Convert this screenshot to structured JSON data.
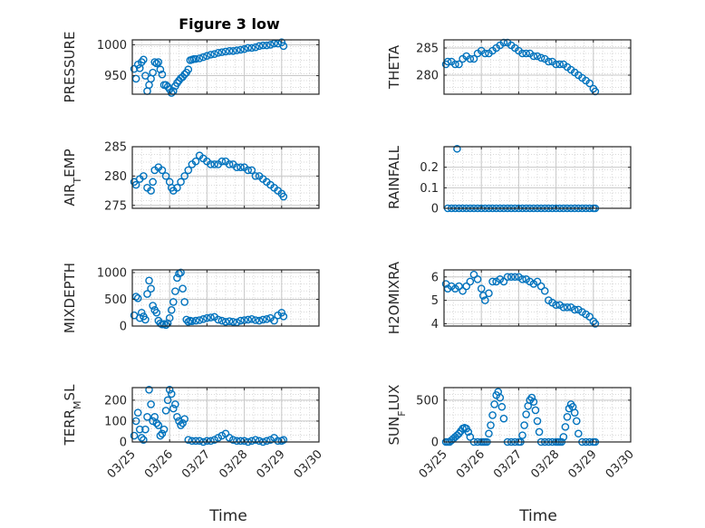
{
  "figure": {
    "title": "Figure 3 low",
    "xlabel": "Time",
    "background": "#ffffff",
    "marker_color": "#0072BD"
  },
  "chart_data": [
    {
      "type": "scatter",
      "title": "Figure 3 low",
      "ylabel": "PRESSURE",
      "ylabel_sub": null,
      "xlim": [
        0,
        5
      ],
      "ylim": [
        920,
        1008
      ],
      "yticks": [
        950,
        1000
      ],
      "xticks": [
        "03/25",
        "03/26",
        "03/27",
        "03/28",
        "03/29",
        "03/30"
      ],
      "xtick_labels_shown": false,
      "grid": true,
      "series": [
        {
          "x": [
            0.05,
            0.1,
            0.15,
            0.2,
            0.25,
            0.3,
            0.35,
            0.4,
            0.45,
            0.5,
            0.55,
            0.6,
            0.65,
            0.7,
            0.75,
            0.8,
            0.85,
            0.9,
            0.95,
            1.0,
            1.05,
            1.1,
            1.15,
            1.2,
            1.25,
            1.3,
            1.35,
            1.4,
            1.45,
            1.5,
            1.55,
            1.6,
            1.65,
            1.7,
            1.8,
            1.9,
            2.0,
            2.1,
            2.2,
            2.3,
            2.4,
            2.5,
            2.6,
            2.7,
            2.8,
            2.9,
            3.0,
            3.1,
            3.2,
            3.3,
            3.4,
            3.5,
            3.6,
            3.7,
            3.8,
            3.9,
            4.0,
            4.05
          ],
          "y": [
            961,
            945,
            968,
            962,
            972,
            976,
            950,
            925,
            935,
            945,
            955,
            972,
            970,
            972,
            960,
            952,
            935,
            935,
            932,
            928,
            922,
            925,
            933,
            938,
            942,
            946,
            948,
            952,
            955,
            960,
            975,
            976,
            977,
            977,
            978,
            980,
            982,
            984,
            985,
            987,
            988,
            989,
            990,
            990,
            991,
            992,
            993,
            995,
            995,
            996,
            998,
            999,
            999,
            1000,
            1002,
            1002,
            1004,
            998
          ]
        }
      ]
    },
    {
      "type": "scatter",
      "ylabel": "THETA",
      "ylabel_sub": null,
      "xlim": [
        0,
        5
      ],
      "ylim": [
        276.5,
        286.5
      ],
      "yticks": [
        280,
        285
      ],
      "xtick_labels_shown": false,
      "grid": true,
      "series": [
        {
          "x": [
            0.05,
            0.1,
            0.2,
            0.3,
            0.4,
            0.5,
            0.6,
            0.7,
            0.8,
            0.9,
            1.0,
            1.1,
            1.2,
            1.3,
            1.4,
            1.5,
            1.6,
            1.7,
            1.8,
            1.9,
            2.0,
            2.1,
            2.2,
            2.3,
            2.4,
            2.5,
            2.6,
            2.7,
            2.8,
            2.9,
            3.0,
            3.1,
            3.2,
            3.3,
            3.4,
            3.5,
            3.6,
            3.7,
            3.8,
            3.9,
            4.0,
            4.05
          ],
          "y": [
            282,
            282.5,
            282.5,
            282,
            282,
            283,
            283.5,
            283,
            283,
            284,
            284.5,
            284,
            284,
            284.5,
            285,
            285.5,
            286,
            286,
            285.5,
            285,
            284.5,
            284,
            284,
            284,
            283.5,
            283.5,
            283.2,
            283,
            282.5,
            282.5,
            282,
            282,
            282,
            281.5,
            281,
            280.5,
            280,
            279.5,
            279,
            278.5,
            277.5,
            277
          ]
        }
      ]
    },
    {
      "type": "scatter",
      "ylabel": "AIR",
      "ylabel_sub": "T",
      "ylabel_after": "EMP",
      "xlim": [
        0,
        5
      ],
      "ylim": [
        274.5,
        285
      ],
      "yticks": [
        275,
        280,
        285
      ],
      "xtick_labels_shown": false,
      "grid": true,
      "series": [
        {
          "x": [
            0.05,
            0.1,
            0.2,
            0.3,
            0.4,
            0.5,
            0.55,
            0.6,
            0.7,
            0.8,
            0.9,
            1.0,
            1.05,
            1.1,
            1.2,
            1.3,
            1.4,
            1.5,
            1.6,
            1.7,
            1.8,
            1.9,
            2.0,
            2.1,
            2.2,
            2.3,
            2.4,
            2.5,
            2.6,
            2.7,
            2.8,
            2.9,
            3.0,
            3.1,
            3.2,
            3.3,
            3.4,
            3.5,
            3.6,
            3.7,
            3.8,
            3.9,
            4.0,
            4.05
          ],
          "y": [
            279,
            278.5,
            279.5,
            280,
            278,
            277.5,
            279,
            281,
            281.5,
            281,
            280,
            279,
            278,
            277.5,
            278,
            279,
            280,
            281,
            282,
            282.5,
            283.5,
            283,
            282.5,
            282,
            282,
            282,
            282.5,
            282.5,
            282,
            282,
            281.5,
            281.5,
            281.5,
            281,
            281,
            280,
            280,
            279.5,
            279,
            278.5,
            278,
            277.5,
            277,
            276.5
          ]
        }
      ]
    },
    {
      "type": "scatter",
      "ylabel": "RAINFALL",
      "ylabel_sub": null,
      "xlim": [
        0,
        5
      ],
      "ylim": [
        0,
        0.3
      ],
      "yticks": [
        0,
        0.1,
        0.2
      ],
      "xtick_labels_shown": false,
      "grid": true,
      "series": [
        {
          "x": [
            0.1,
            0.35,
            0.2,
            0.3,
            0.4,
            0.5,
            0.6,
            0.7,
            0.8,
            0.9,
            1.0,
            1.1,
            1.2,
            1.3,
            1.4,
            1.5,
            1.6,
            1.7,
            1.8,
            1.9,
            2.0,
            2.1,
            2.2,
            2.3,
            2.4,
            2.5,
            2.6,
            2.7,
            2.8,
            2.9,
            3.0,
            3.1,
            3.2,
            3.3,
            3.4,
            3.5,
            3.6,
            3.7,
            3.8,
            3.9,
            4.0,
            4.05
          ],
          "y": [
            0,
            0.29,
            0,
            0,
            0,
            0,
            0,
            0,
            0,
            0,
            0,
            0,
            0,
            0,
            0,
            0,
            0,
            0,
            0,
            0,
            0,
            0,
            0,
            0,
            0,
            0,
            0,
            0,
            0,
            0,
            0,
            0,
            0,
            0,
            0,
            0,
            0,
            0,
            0,
            0,
            0,
            0
          ]
        }
      ]
    },
    {
      "type": "scatter",
      "ylabel": "MIXDEPTH",
      "ylabel_sub": null,
      "xlim": [
        0,
        5
      ],
      "ylim": [
        0,
        1050
      ],
      "yticks": [
        0,
        500,
        1000
      ],
      "xtick_labels_shown": false,
      "grid": true,
      "series": [
        {
          "x": [
            0.05,
            0.1,
            0.15,
            0.2,
            0.25,
            0.3,
            0.35,
            0.4,
            0.45,
            0.5,
            0.55,
            0.6,
            0.65,
            0.7,
            0.75,
            0.8,
            0.85,
            0.9,
            0.95,
            1.0,
            1.05,
            1.1,
            1.15,
            1.2,
            1.25,
            1.3,
            1.35,
            1.4,
            1.45,
            1.5,
            1.55,
            1.6,
            1.7,
            1.8,
            1.9,
            2.0,
            2.1,
            2.2,
            2.3,
            2.4,
            2.5,
            2.6,
            2.7,
            2.8,
            2.9,
            3.0,
            3.1,
            3.2,
            3.3,
            3.4,
            3.5,
            3.6,
            3.7,
            3.8,
            3.9,
            4.0,
            4.05
          ],
          "y": [
            200,
            550,
            520,
            150,
            250,
            180,
            120,
            600,
            850,
            700,
            380,
            300,
            250,
            100,
            50,
            30,
            40,
            20,
            50,
            150,
            300,
            450,
            650,
            900,
            980,
            1000,
            700,
            450,
            120,
            80,
            100,
            90,
            100,
            110,
            130,
            150,
            160,
            170,
            120,
            100,
            80,
            90,
            80,
            70,
            100,
            110,
            120,
            130,
            110,
            100,
            120,
            130,
            150,
            100,
            200,
            250,
            180
          ]
        }
      ]
    },
    {
      "type": "scatter",
      "ylabel": "H2OMIXRA",
      "ylabel_sub": null,
      "xlim": [
        0,
        5
      ],
      "ylim": [
        3.9,
        6.3
      ],
      "yticks": [
        4,
        5,
        6
      ],
      "xtick_labels_shown": false,
      "grid": true,
      "series": [
        {
          "x": [
            0.05,
            0.1,
            0.2,
            0.3,
            0.4,
            0.5,
            0.6,
            0.7,
            0.8,
            0.9,
            1.0,
            1.05,
            1.1,
            1.2,
            1.3,
            1.4,
            1.5,
            1.6,
            1.7,
            1.8,
            1.9,
            2.0,
            2.1,
            2.2,
            2.3,
            2.4,
            2.5,
            2.6,
            2.7,
            2.8,
            2.9,
            3.0,
            3.1,
            3.2,
            3.3,
            3.4,
            3.5,
            3.6,
            3.7,
            3.8,
            3.9,
            4.0,
            4.05
          ],
          "y": [
            5.7,
            5.5,
            5.6,
            5.5,
            5.6,
            5.4,
            5.6,
            5.8,
            6.1,
            5.9,
            5.5,
            5.2,
            5.0,
            5.3,
            5.8,
            5.8,
            5.9,
            5.8,
            6.0,
            6.0,
            6.0,
            6.0,
            5.9,
            5.9,
            5.8,
            5.7,
            5.8,
            5.6,
            5.4,
            5.0,
            4.9,
            4.8,
            4.8,
            4.7,
            4.7,
            4.7,
            4.6,
            4.6,
            4.5,
            4.4,
            4.3,
            4.1,
            4.0
          ]
        }
      ]
    },
    {
      "type": "scatter",
      "ylabel": "TERR",
      "ylabel_sub": "M",
      "ylabel_after": "SL",
      "xlim": [
        0,
        5
      ],
      "ylim": [
        0,
        260
      ],
      "yticks": [
        0,
        100,
        200
      ],
      "xtick_labels_shown": true,
      "grid": true,
      "series": [
        {
          "x": [
            0.05,
            0.1,
            0.15,
            0.2,
            0.25,
            0.3,
            0.35,
            0.4,
            0.45,
            0.5,
            0.55,
            0.6,
            0.65,
            0.7,
            0.75,
            0.8,
            0.85,
            0.9,
            0.95,
            1.0,
            1.05,
            1.1,
            1.15,
            1.2,
            1.25,
            1.3,
            1.35,
            1.4,
            1.5,
            1.6,
            1.7,
            1.8,
            1.9,
            2.0,
            2.1,
            2.2,
            2.3,
            2.4,
            2.5,
            2.6,
            2.7,
            2.8,
            2.9,
            3.0,
            3.1,
            3.2,
            3.3,
            3.4,
            3.5,
            3.6,
            3.7,
            3.8,
            3.9,
            4.0,
            4.05
          ],
          "y": [
            30,
            100,
            140,
            60,
            20,
            10,
            60,
            120,
            250,
            180,
            100,
            120,
            90,
            80,
            30,
            40,
            60,
            150,
            200,
            250,
            230,
            160,
            180,
            120,
            100,
            80,
            90,
            110,
            10,
            5,
            5,
            5,
            0,
            5,
            5,
            10,
            20,
            30,
            40,
            20,
            10,
            5,
            5,
            5,
            0,
            5,
            10,
            5,
            0,
            5,
            10,
            20,
            5,
            5,
            10
          ]
        }
      ]
    },
    {
      "type": "scatter",
      "ylabel": "SUN",
      "ylabel_sub": "F",
      "ylabel_after": "LUX",
      "xlim": [
        0,
        5
      ],
      "ylim": [
        0,
        650
      ],
      "yticks": [
        0,
        500
      ],
      "xtick_labels_shown": true,
      "grid": true,
      "series": [
        {
          "x": [
            0.05,
            0.1,
            0.15,
            0.2,
            0.25,
            0.3,
            0.35,
            0.4,
            0.45,
            0.5,
            0.55,
            0.6,
            0.65,
            0.7,
            0.8,
            0.9,
            1.0,
            1.05,
            1.1,
            1.15,
            1.2,
            1.25,
            1.3,
            1.35,
            1.4,
            1.45,
            1.5,
            1.55,
            1.6,
            1.7,
            1.8,
            1.9,
            2.0,
            2.05,
            2.1,
            2.15,
            2.2,
            2.25,
            2.3,
            2.35,
            2.4,
            2.45,
            2.5,
            2.55,
            2.6,
            2.7,
            2.8,
            2.9,
            3.0,
            3.05,
            3.1,
            3.15,
            3.2,
            3.25,
            3.3,
            3.35,
            3.4,
            3.45,
            3.5,
            3.55,
            3.6,
            3.7,
            3.8,
            3.9,
            4.0,
            4.05
          ],
          "y": [
            0,
            0,
            0,
            20,
            40,
            60,
            80,
            100,
            130,
            160,
            170,
            160,
            120,
            60,
            0,
            0,
            0,
            0,
            0,
            0,
            100,
            200,
            320,
            450,
            560,
            600,
            530,
            420,
            280,
            0,
            0,
            0,
            0,
            0,
            80,
            200,
            330,
            430,
            500,
            530,
            480,
            380,
            250,
            120,
            0,
            0,
            0,
            0,
            0,
            0,
            0,
            0,
            60,
            180,
            300,
            400,
            450,
            420,
            350,
            250,
            100,
            0,
            0,
            0,
            0,
            0
          ]
        }
      ]
    }
  ]
}
